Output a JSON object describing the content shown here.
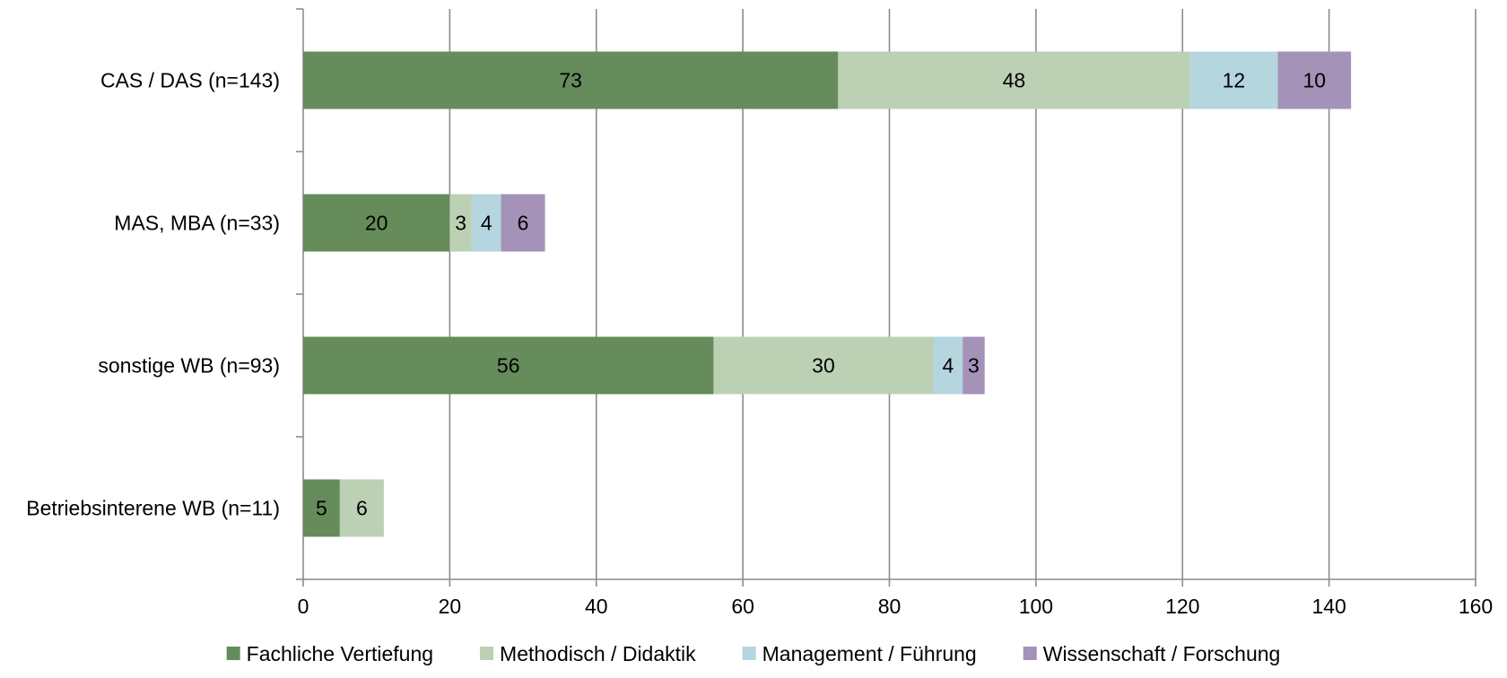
{
  "chart_data": {
    "type": "bar",
    "orientation": "horizontal",
    "stacked": true,
    "categories": [
      "CAS / DAS (n=143)",
      "MAS, MBA (n=33)",
      "sonstige WB (n=93)",
      "Betriebsinterene WB (n=11)"
    ],
    "series": [
      {
        "name": "Fachliche Vertiefung",
        "color": "#658c5a",
        "values": [
          73,
          20,
          56,
          5
        ]
      },
      {
        "name": "Methodisch / Didaktik",
        "color": "#bcd0b4",
        "values": [
          48,
          3,
          30,
          6
        ]
      },
      {
        "name": "Management / Führung",
        "color": "#b5d5df",
        "values": [
          12,
          4,
          4,
          0
        ]
      },
      {
        "name": "Wissenschaft / Forschung",
        "color": "#a492b9",
        "values": [
          10,
          6,
          3,
          0
        ]
      }
    ],
    "xlim": [
      0,
      160
    ],
    "xticks": [
      "0",
      "20",
      "40",
      "60",
      "80",
      "100",
      "120",
      "140",
      "160"
    ],
    "grid": "vertical",
    "legend": "bottom",
    "title": "",
    "xlabel": "",
    "ylabel": ""
  }
}
